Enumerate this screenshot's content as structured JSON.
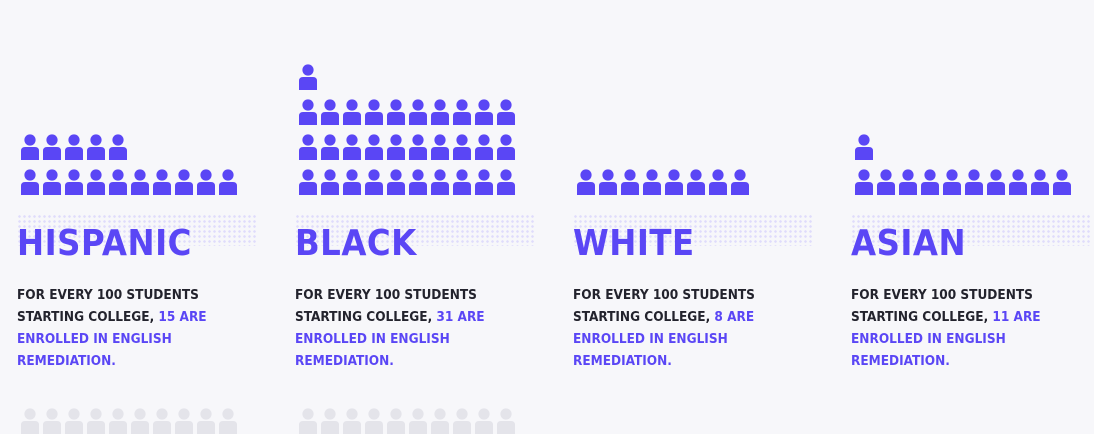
{
  "chart_data": {
    "type": "pictograph",
    "icon": "person-icon",
    "icon_color": "#5a46f5",
    "text_color": "#23232d",
    "background": "#f7f7fa",
    "groups": [
      {
        "label": "HISPANIC",
        "value": 15,
        "text_before": "FOR EVERY 100 STUDENTS STARTING COLLEGE, ",
        "text_highlight": "15 ARE ENROLLED IN ENGLISH REMEDIATION."
      },
      {
        "label": "BLACK",
        "value": 31,
        "text_before": "FOR EVERY 100 STUDENTS STARTING COLLEGE, ",
        "text_highlight": "31 ARE ENROLLED IN ENGLISH REMEDIATION."
      },
      {
        "label": "WHITE",
        "value": 8,
        "text_before": "FOR EVERY 100 STUDENTS STARTING COLLEGE, ",
        "text_highlight": "8 ARE ENROLLED IN ENGLISH REMEDIATION."
      },
      {
        "label": "ASIAN",
        "value": 11,
        "text_before": "FOR EVERY 100 STUDENTS STARTING COLLEGE, ",
        "text_highlight": "11 ARE ENROLLED IN ENGLISH REMEDIATION."
      }
    ]
  }
}
